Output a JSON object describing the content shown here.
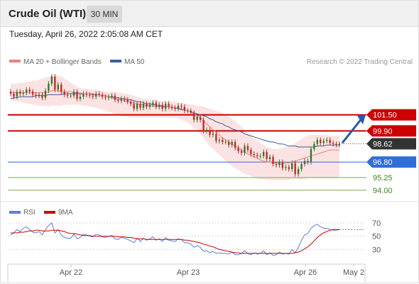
{
  "header": {
    "title": "Crude Oil (WTI)",
    "timeframe": "30 MIN"
  },
  "timestamp": "Tuesday, April 26, 2022 2:05:08 AM CET",
  "credit": "Research © 2022 Trading Central",
  "colors": {
    "ma20": "#f08080",
    "ma50": "#3b5f99",
    "band_fill": "#fbdcdc",
    "resistance": "#cc0000",
    "support_blue": "#2f6fd6",
    "support_green": "#77aa55",
    "rsi": "#5a7fd6",
    "rsi_ma": "#cc0000",
    "last_price": "#333333",
    "arrow": "#2b5ba8"
  },
  "chart_data": [
    {
      "type": "candlestick",
      "legend": [
        {
          "name": "MA 20 + Bollinger Bands",
          "color": "#f08080"
        },
        {
          "name": "MA 50",
          "color": "#3b5f99"
        }
      ],
      "x_ticks": [
        "Apr 22",
        "Apr 23",
        "Apr 26",
        "May 2"
      ],
      "ylim": [
        93.0,
        106.0
      ],
      "levels": [
        {
          "label": "101.50",
          "value": 101.5,
          "kind": "resistance",
          "color": "#cc0000"
        },
        {
          "label": "99.90",
          "value": 99.9,
          "kind": "resistance",
          "color": "#cc0000"
        },
        {
          "label": "98.62",
          "value": 98.62,
          "kind": "last",
          "color": "#333333"
        },
        {
          "label": "96.80",
          "value": 96.8,
          "kind": "support",
          "color": "#2f6fd6"
        },
        {
          "label": "95.25",
          "value": 95.25,
          "kind": "support",
          "color": "#77aa55"
        },
        {
          "label": "94.00",
          "value": 94.0,
          "kind": "support",
          "color": "#77aa55"
        }
      ],
      "close": [
        103.6,
        103.3,
        103.8,
        103.6,
        103.7,
        104.0,
        103.8,
        103.5,
        103.4,
        103.5,
        103.2,
        103.9,
        104.6,
        105.3,
        104.0,
        104.5,
        103.8,
        103.5,
        103.4,
        103.4,
        103.8,
        103.1,
        103.3,
        103.6,
        103.5,
        103.4,
        103.3,
        103.6,
        103.5,
        103.3,
        103.2,
        103.3,
        103.4,
        103.0,
        102.9,
        103.1,
        103.0,
        102.8,
        102.6,
        102.1,
        102.6,
        102.2,
        102.6,
        102.3,
        102.5,
        102.7,
        102.3,
        102.5,
        102.1,
        102.6,
        102.3,
        102.2,
        102.1,
        102.4,
        102.3,
        101.9,
        101.9,
        101.7,
        101.0,
        101.3,
        101.0,
        99.9,
        100.0,
        99.5,
        99.6,
        98.9,
        99.0,
        98.8,
        98.8,
        98.5,
        98.8,
        98.2,
        97.9,
        97.7,
        98.4,
        98.0,
        97.6,
        97.5,
        97.4,
        97.4,
        97.8,
        97.1,
        97.3,
        96.6,
        96.5,
        96.8,
        96.2,
        96.3,
        96.1,
        96.7,
        95.6,
        96.1,
        96.6,
        96.9,
        96.8,
        98.1,
        98.6,
        99.0,
        98.7,
        98.9,
        99.0,
        98.7,
        98.6,
        98.5,
        98.6
      ],
      "ma20": [
        103.7,
        103.7,
        103.7,
        103.7,
        103.7,
        103.7,
        103.7,
        103.7,
        103.7,
        103.7,
        103.7,
        103.7,
        103.8,
        103.9,
        103.9,
        103.9,
        103.8,
        103.8,
        103.8,
        103.8,
        103.7,
        103.7,
        103.7,
        103.6,
        103.6,
        103.6,
        103.6,
        103.5,
        103.5,
        103.4,
        103.4,
        103.3,
        103.2,
        103.1,
        103.0,
        103.0,
        102.9,
        102.8,
        102.7,
        102.7,
        102.6,
        102.5,
        102.5,
        102.4,
        102.4,
        102.4,
        102.3,
        102.3,
        102.3,
        102.3,
        102.3,
        102.2,
        102.2,
        102.2,
        102.1,
        102.0,
        101.9,
        101.8,
        101.6,
        101.4,
        101.2,
        100.9,
        100.6,
        100.3,
        100.0,
        99.8,
        99.5,
        99.2,
        99.0,
        98.8,
        98.6,
        98.4,
        98.2,
        98.0,
        97.8,
        97.6,
        97.5,
        97.3,
        97.2,
        97.0,
        96.9,
        96.8,
        96.8,
        96.7,
        96.7,
        96.6,
        96.6,
        96.7,
        96.7,
        96.8,
        96.9,
        97.0,
        97.1,
        97.2,
        97.3,
        97.4,
        97.5,
        97.6,
        97.7,
        97.8,
        97.9,
        98.0,
        98.0,
        98.0,
        98.0
      ],
      "band_upper": [
        104.6,
        104.6,
        104.6,
        104.7,
        104.7,
        104.8,
        104.8,
        104.9,
        104.9,
        105.0,
        105.1,
        105.2,
        105.3,
        105.4,
        105.4,
        105.4,
        105.3,
        105.1,
        104.9,
        104.7,
        104.5,
        104.3,
        104.2,
        104.1,
        104.1,
        104.0,
        104.0,
        104.0,
        103.9,
        103.9,
        103.8,
        103.8,
        103.8,
        103.8,
        103.7,
        103.7,
        103.6,
        103.6,
        103.5,
        103.4,
        103.3,
        103.2,
        103.1,
        103.1,
        103.0,
        103.0,
        103.0,
        102.9,
        102.9,
        102.9,
        102.8,
        102.8,
        102.8,
        102.7,
        102.7,
        102.6,
        102.6,
        102.5,
        102.5,
        102.4,
        102.4,
        102.3,
        102.2,
        102.1,
        102.0,
        101.9,
        101.8,
        101.7,
        101.5,
        101.3,
        101.1,
        100.9,
        100.6,
        100.3,
        100.0,
        99.7,
        99.4,
        99.1,
        98.9,
        98.7,
        98.5,
        98.3,
        98.2,
        98.1,
        98.1,
        98.1,
        98.2,
        98.3,
        98.4,
        98.5,
        98.7,
        98.9,
        99.1,
        99.3,
        99.4,
        99.5,
        99.5,
        99.5,
        99.5,
        99.5,
        99.5,
        99.4,
        99.4,
        99.4,
        99.4
      ],
      "band_lower": [
        102.9,
        102.9,
        102.8,
        102.8,
        102.7,
        102.6,
        102.6,
        102.5,
        102.5,
        102.4,
        102.4,
        102.4,
        102.3,
        102.4,
        102.4,
        102.4,
        102.4,
        102.5,
        102.5,
        102.5,
        102.5,
        102.5,
        102.5,
        102.4,
        102.4,
        102.3,
        102.3,
        102.2,
        102.1,
        102.0,
        101.9,
        101.8,
        101.7,
        101.6,
        101.5,
        101.4,
        101.3,
        101.3,
        101.2,
        101.2,
        101.2,
        101.2,
        101.2,
        101.2,
        101.2,
        101.2,
        101.2,
        101.2,
        101.2,
        101.2,
        101.2,
        101.2,
        101.2,
        101.1,
        101.0,
        100.9,
        100.7,
        100.5,
        100.2,
        99.9,
        99.6,
        99.2,
        98.8,
        98.4,
        98.1,
        97.8,
        97.5,
        97.2,
        96.9,
        96.6,
        96.4,
        96.2,
        96.0,
        95.8,
        95.6,
        95.5,
        95.4,
        95.3,
        95.2,
        95.1,
        95.1,
        95.0,
        95.0,
        95.0,
        95.0,
        95.0,
        95.0,
        95.0,
        95.0,
        95.1,
        95.1,
        95.1,
        95.1,
        95.1,
        95.2,
        95.2,
        95.2,
        95.2,
        95.2,
        95.2,
        95.2,
        95.2,
        95.2,
        95.2,
        95.2
      ],
      "ma50": [
        103.1,
        103.2,
        103.2,
        103.3,
        103.3,
        103.3,
        103.3,
        103.3,
        103.4,
        103.4,
        103.4,
        103.4,
        103.5,
        103.5,
        103.5,
        103.5,
        103.5,
        103.6,
        103.6,
        103.6,
        103.6,
        103.6,
        103.6,
        103.6,
        103.6,
        103.6,
        103.5,
        103.5,
        103.5,
        103.4,
        103.4,
        103.3,
        103.3,
        103.2,
        103.2,
        103.1,
        103.1,
        103.0,
        103.0,
        102.9,
        102.8,
        102.8,
        102.7,
        102.6,
        102.6,
        102.5,
        102.5,
        102.4,
        102.4,
        102.3,
        102.3,
        102.2,
        102.2,
        102.1,
        102.0,
        102.0,
        101.9,
        101.8,
        101.7,
        101.6,
        101.5,
        101.4,
        101.3,
        101.1,
        101.0,
        100.8,
        100.7,
        100.6,
        100.4,
        100.3,
        100.1,
        100.0,
        99.9,
        99.8,
        99.6,
        99.5,
        99.4,
        99.3,
        99.2,
        99.1,
        99.0,
        98.9,
        98.8,
        98.8,
        98.7,
        98.6,
        98.6,
        98.5,
        98.4,
        98.4,
        98.4,
        98.3,
        98.3,
        98.3,
        98.3,
        98.3,
        98.3,
        98.4,
        98.4,
        98.4,
        98.5,
        98.5,
        98.5,
        98.5,
        98.5
      ]
    },
    {
      "type": "line",
      "legend": [
        {
          "name": "RSI",
          "color": "#5a7fd6"
        },
        {
          "name": "9MA",
          "color": "#cc0000"
        }
      ],
      "y_ticks": [
        "70",
        "50",
        "30"
      ],
      "ylim": [
        10,
        85
      ],
      "series": [
        {
          "name": "RSI",
          "values": [
            52,
            55,
            60,
            57,
            62,
            64,
            60,
            56,
            55,
            57,
            52,
            60,
            66,
            70,
            55,
            60,
            52,
            48,
            47,
            47,
            53,
            46,
            48,
            53,
            52,
            50,
            49,
            53,
            52,
            49,
            48,
            50,
            51,
            46,
            45,
            48,
            47,
            45,
            43,
            40,
            47,
            42,
            47,
            44,
            46,
            49,
            44,
            46,
            42,
            48,
            44,
            43,
            42,
            46,
            45,
            40,
            40,
            38,
            33,
            36,
            33,
            27,
            28,
            25,
            27,
            24,
            25,
            24,
            24,
            23,
            26,
            22,
            22,
            24,
            28,
            24,
            22,
            25,
            23,
            24,
            28,
            22,
            25,
            21,
            22,
            26,
            23,
            24,
            23,
            30,
            25,
            33,
            44,
            52,
            54,
            62,
            66,
            68,
            64,
            62,
            62,
            60,
            59,
            59,
            60
          ]
        },
        {
          "name": "9MA",
          "values": [
            55,
            55,
            55,
            56,
            56,
            57,
            58,
            58,
            59,
            59,
            58,
            58,
            58,
            59,
            59,
            59,
            58,
            57,
            55,
            54,
            54,
            53,
            52,
            51,
            51,
            51,
            50,
            50,
            50,
            50,
            50,
            50,
            50,
            50,
            49,
            49,
            49,
            48,
            48,
            47,
            46,
            46,
            46,
            45,
            45,
            45,
            45,
            45,
            45,
            45,
            45,
            45,
            45,
            45,
            45,
            44,
            44,
            43,
            42,
            41,
            40,
            38,
            37,
            35,
            34,
            32,
            30,
            29,
            28,
            27,
            26,
            25,
            25,
            24,
            24,
            24,
            24,
            24,
            24,
            24,
            24,
            24,
            24,
            24,
            24,
            24,
            24,
            24,
            24,
            24,
            25,
            26,
            28,
            31,
            34,
            38,
            43,
            48,
            52,
            55,
            57,
            59,
            60,
            60,
            60
          ]
        }
      ]
    }
  ]
}
